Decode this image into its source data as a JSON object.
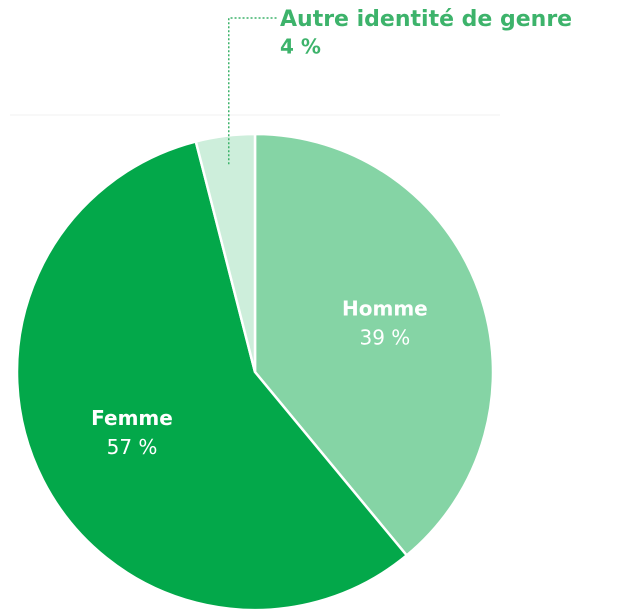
{
  "chart_data": {
    "type": "pie",
    "categories": [
      "Homme",
      "Femme",
      "Autre identité de genre"
    ],
    "values": [
      39,
      57,
      4
    ],
    "value_labels": [
      "39 %",
      "57 %",
      "4 %"
    ],
    "colors": [
      "#85d4a5",
      "#03a84a",
      "#cdeedb"
    ]
  }
}
